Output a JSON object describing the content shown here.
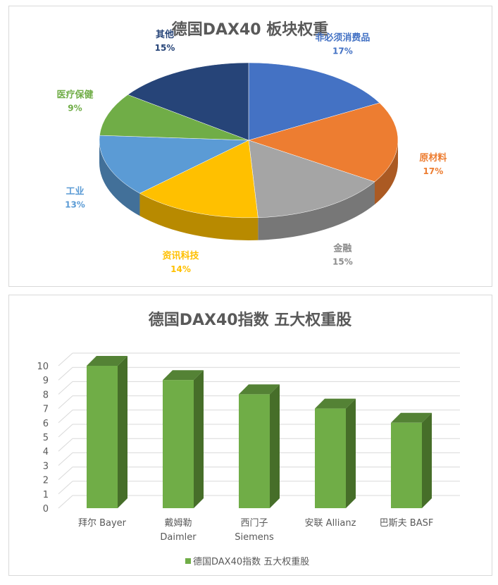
{
  "chart_data": [
    {
      "type": "pie",
      "title": "德国DAX40 板块权重",
      "three_d": true,
      "slices": [
        {
          "label": "非必须消费品",
          "value": 17,
          "display": "17%",
          "color": "#4472C4"
        },
        {
          "label": "原材料",
          "value": 17,
          "display": "17%",
          "color": "#ED7D31"
        },
        {
          "label": "金融",
          "value": 15,
          "display": "15%",
          "color": "#A5A5A5"
        },
        {
          "label": "资讯科技",
          "value": 14,
          "display": "14%",
          "color": "#FFC000"
        },
        {
          "label": "工业",
          "value": 13,
          "display": "13%",
          "color": "#5B9BD5"
        },
        {
          "label": "医疗保健",
          "value": 9,
          "display": "9%",
          "color": "#70AD47"
        },
        {
          "label": "其他",
          "value": 15,
          "display": "15%",
          "color": "#264478"
        }
      ]
    },
    {
      "type": "bar",
      "three_d": true,
      "title": "德国DAX40指数 五大权重股",
      "categories": [
        [
          "拜尔 Bayer"
        ],
        [
          "戴姆勒",
          "Daimler"
        ],
        [
          "西门子",
          "Siemens"
        ],
        [
          "安联 Allianz"
        ],
        [
          "巴斯夫 BASF"
        ]
      ],
      "series": [
        {
          "name": "德国DAX40指数 五大权重股",
          "values": [
            10,
            9,
            8,
            7,
            6
          ],
          "color": "#70AD47"
        }
      ],
      "ylim": [
        0,
        10
      ],
      "yticks": [
        0,
        1,
        2,
        3,
        4,
        5,
        6,
        7,
        8,
        9,
        10
      ],
      "grid": true,
      "legend": "bottom"
    }
  ]
}
